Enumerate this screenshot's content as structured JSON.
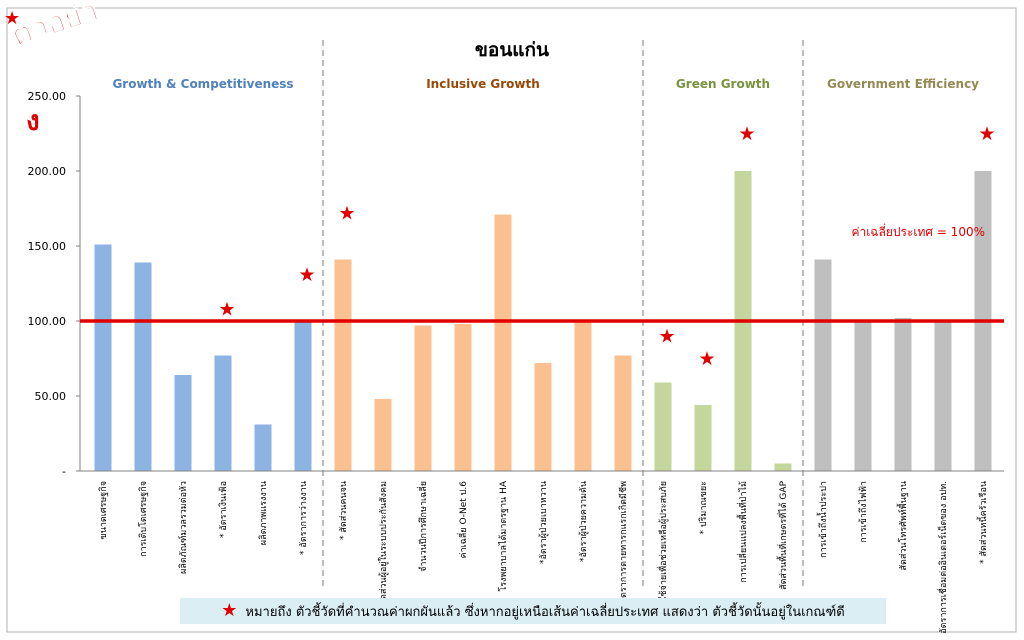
{
  "watermark": {
    "text_line1": "ตัวอย่า",
    "text_line2": "ง",
    "star": "★"
  },
  "footer": {
    "star": "★",
    "text": "หมายถึง ตัวชี้วัดที่คำนวณค่าผกผันแล้ว ซึ่งหากอยู่เหนือเส้นค่าเฉลี่ยประเทศ แสดงว่า ตัวชี้วัดนั้นอยู่ในเกณฑ์ดี"
  },
  "colors": {
    "growth": "#8db3e2",
    "inclusive": "#fac090",
    "green": "#c3d69b",
    "government": "#bfbfbf",
    "baseline": "#e00000",
    "star": "#e00000",
    "divider": "#a6a6a6"
  },
  "chart_data": {
    "type": "bar",
    "title": "ขอนแก่น",
    "ylim": [
      0,
      250
    ],
    "yticks": [
      "-",
      "50.00",
      "100.00",
      "150.00",
      "200.00",
      "250.00"
    ],
    "grid": false,
    "reference_line": {
      "value": 100,
      "label": "ค่าเฉลี่ยประเทศ = 100%"
    },
    "groups": [
      {
        "name": "Growth & Competitiveness",
        "color": "#8db3e2",
        "title_color": "#4f81bd",
        "categories": [
          "ขนาดเศรษฐกิจ",
          "การเติบโตเศรษฐกิจ",
          "ผลิตภัณฑ์มวลรวมต่อหัว",
          "* อัตราเงินเฟ้อ",
          "ผลิตภาพแรงงาน",
          "* อัตราการว่างงาน"
        ],
        "values": [
          151,
          139,
          64,
          77,
          31,
          100
        ],
        "starred": [
          false,
          false,
          false,
          true,
          false,
          true
        ]
      },
      {
        "name": "Inclusive Growth",
        "color": "#fac090",
        "title_color": "#984807",
        "categories": [
          "* สัดส่วนคนจน",
          "สัดส่วนผู้อยู่ในระบบประกันสังคม",
          "จำนวนปีการศึกษาเฉลี่ย",
          "ค่าเฉลี่ย O-Net ป.6",
          "โรงพยาบาลได้มาตรฐาน HA",
          "*อัตราผู้ป่วยเบาหวาน",
          "*อัตราผู้ป่วยความดัน",
          "*อัตราการตายทารกแรกเกิดมีชีพ"
        ],
        "values": [
          141,
          48,
          97,
          98,
          171,
          72,
          100,
          77
        ],
        "starred": [
          true,
          false,
          false,
          false,
          false,
          false,
          false,
          false
        ]
      },
      {
        "name": "Green Growth",
        "color": "#c3d69b",
        "title_color": "#77933c",
        "categories": [
          "*ค่าใช้จ่ายเพื่อช่วยเหลือผู้ประสบภัย",
          "* ปริมาณขยะ",
          "การเปลี่ยนแปลงพื้นที่ป่าไม้",
          "สัดส่วนพื้นที่เกษตรที่ได้ GAP"
        ],
        "values": [
          59,
          44,
          200,
          5
        ],
        "starred": [
          true,
          true,
          true,
          false
        ]
      },
      {
        "name": "Government  Efficiency",
        "color": "#bfbfbf",
        "title_color": "#948a54",
        "categories": [
          "การเข้าถึงน้ำประปา",
          "การเข้าถึงไฟฟ้า",
          "สัดส่วนโทรศัพท์พื้นฐาน",
          "อัตราการเชื่อมต่ออินเตอร์เน็ตของ อปท.",
          "* สัดส่วนหนี้ครัวเรือน"
        ],
        "values": [
          141,
          100,
          102,
          101,
          200
        ],
        "starred": [
          false,
          false,
          false,
          false,
          true
        ]
      }
    ]
  }
}
